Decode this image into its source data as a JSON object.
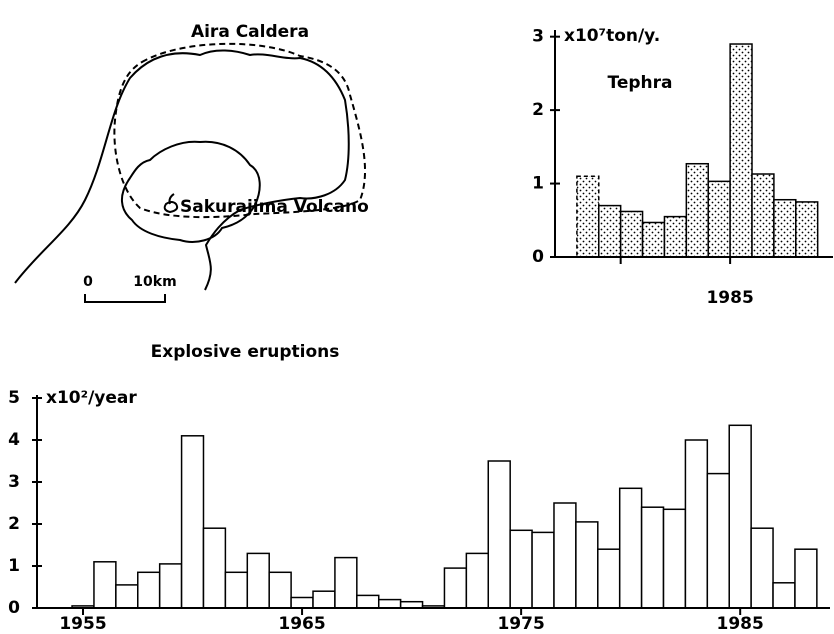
{
  "chart_data": [
    {
      "type": "bar",
      "title": "Explosive eruptions",
      "ylabel": "x10²/year",
      "x": [
        1955,
        1956,
        1957,
        1958,
        1959,
        1960,
        1961,
        1962,
        1963,
        1964,
        1965,
        1966,
        1967,
        1968,
        1969,
        1970,
        1971,
        1972,
        1973,
        1974,
        1975,
        1976,
        1977,
        1978,
        1979,
        1980,
        1981,
        1982,
        1983,
        1984,
        1985,
        1986,
        1987,
        1988
      ],
      "values": [
        0.05,
        1.1,
        0.55,
        0.85,
        1.05,
        4.1,
        1.9,
        0.85,
        1.3,
        0.85,
        0.25,
        0.4,
        1.2,
        0.3,
        0.2,
        0.15,
        0.05,
        0.95,
        1.3,
        3.5,
        1.85,
        1.8,
        2.5,
        2.05,
        1.4,
        2.85,
        2.4,
        2.35,
        4.0,
        3.2,
        4.35,
        1.9,
        0.6,
        1.4
      ],
      "color": "#ffffff",
      "xlim": [
        1952.9,
        1989.1
      ],
      "xticks": [
        1955,
        1965,
        1975,
        1985
      ],
      "ylim": [
        0,
        5
      ],
      "yticks": [
        0,
        1,
        2,
        3,
        4,
        5
      ]
    },
    {
      "type": "histogram",
      "title": "Tephra",
      "ylabel": "x10⁷ton/y.",
      "bins": [
        1978,
        1979,
        1980,
        1981,
        1982,
        1983,
        1984,
        1985,
        1986,
        1987,
        1988,
        1989
      ],
      "values": [
        1.1,
        0.7,
        0.62,
        0.47,
        0.55,
        1.27,
        1.03,
        2.9,
        1.13,
        0.78,
        0.75
      ],
      "bar_styles": [
        "dashed",
        "solid",
        "solid",
        "solid",
        "solid",
        "solid",
        "solid",
        "solid",
        "solid",
        "solid",
        "solid"
      ],
      "color": "dotted",
      "xlim": [
        1977,
        1989.7
      ],
      "xticks": [
        1985
      ],
      "xminor_ticks": [
        1980
      ],
      "ylim": [
        0,
        3.05
      ],
      "yticks": [
        0,
        1,
        2,
        3
      ]
    }
  ],
  "map": {
    "title": "Aira Caldera",
    "volcano": "Sakurajima Volcano",
    "scale_start": "0",
    "scale_end": "10km"
  }
}
